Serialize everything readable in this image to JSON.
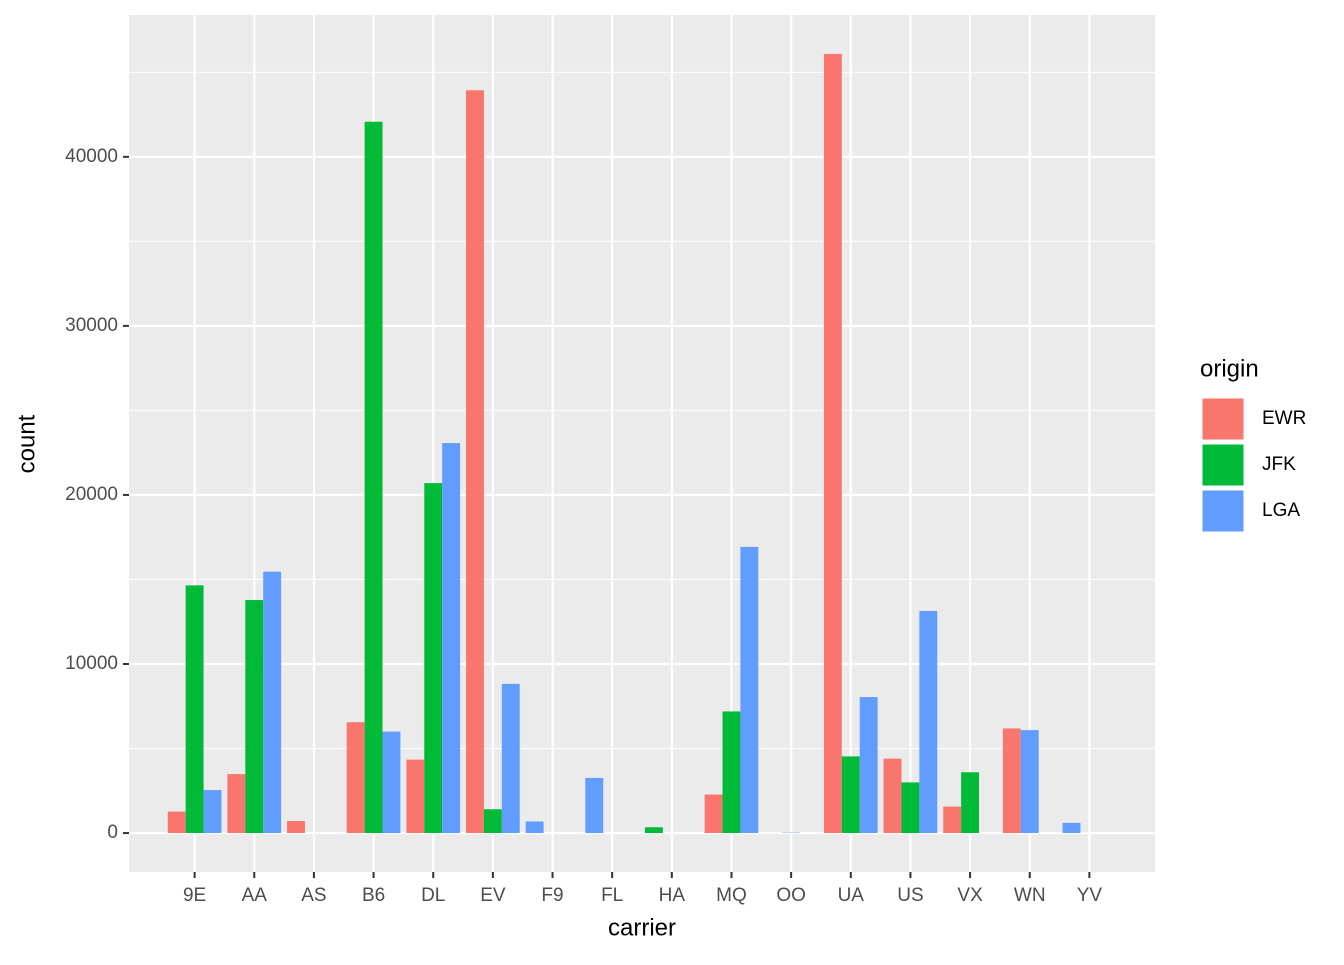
{
  "chart_data": {
    "type": "bar",
    "x_label": "carrier",
    "y_label": "count",
    "legend_title": "origin",
    "legend_position": "right",
    "grid": true,
    "categories": [
      "9E",
      "AA",
      "AS",
      "B6",
      "DL",
      "EV",
      "F9",
      "FL",
      "HA",
      "MQ",
      "OO",
      "UA",
      "US",
      "VX",
      "WN",
      "YV"
    ],
    "series": [
      {
        "name": "EWR",
        "color": "#F8766D",
        "values": [
          1268,
          3487,
          714,
          6557,
          4342,
          43939,
          null,
          null,
          null,
          2276,
          6,
          46087,
          4405,
          1566,
          6188,
          null
        ]
      },
      {
        "name": "JFK",
        "color": "#00BA38",
        "values": [
          14651,
          13783,
          null,
          42076,
          20701,
          1408,
          null,
          null,
          342,
          7193,
          null,
          4534,
          2995,
          3596,
          null,
          null
        ]
      },
      {
        "name": "LGA",
        "color": "#619CFF",
        "values": [
          2541,
          15459,
          null,
          6002,
          23067,
          8826,
          685,
          3260,
          null,
          16928,
          26,
          8044,
          13136,
          null,
          6087,
          601
        ]
      }
    ],
    "ylim": [
      -2304,
      48391
    ],
    "yticks": [
      0,
      10000,
      20000,
      30000,
      40000
    ]
  }
}
